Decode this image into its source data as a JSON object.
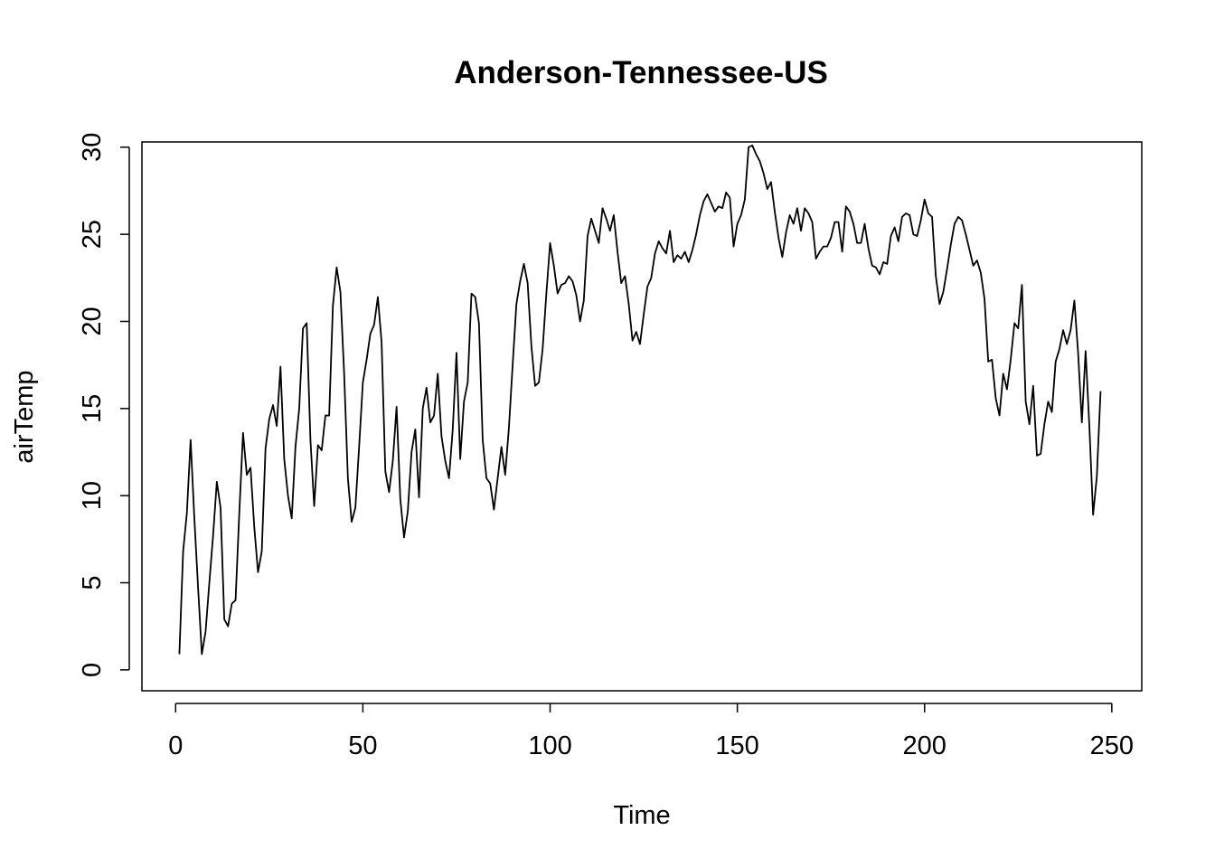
{
  "chart_data": {
    "type": "line",
    "title": "Anderson-Tennessee-US",
    "xlabel": "Time",
    "ylabel": "airTemp",
    "xlim": [
      -9,
      258
    ],
    "ylim": [
      -1.2,
      30.3
    ],
    "x_ticks": [
      0,
      50,
      100,
      150,
      200,
      250
    ],
    "y_ticks": [
      0,
      5,
      10,
      15,
      20,
      25,
      30
    ],
    "grid": false,
    "legend": "none",
    "x_start": 1,
    "series": [
      {
        "color": "#000000",
        "values": [
          0.9,
          6.8,
          9.0,
          13.2,
          8.7,
          4.7,
          0.9,
          2.2,
          5.0,
          7.7,
          10.8,
          9.3,
          2.9,
          2.5,
          3.8,
          4.0,
          9.0,
          13.6,
          11.2,
          11.6,
          8.2,
          5.6,
          6.8,
          12.7,
          14.4,
          15.2,
          14.0,
          17.4,
          12.1,
          10.0,
          8.7,
          12.8,
          15.0,
          19.6,
          19.9,
          13.2,
          9.4,
          12.9,
          12.6,
          14.6,
          14.6,
          20.9,
          23.1,
          21.7,
          17.0,
          11.0,
          8.5,
          9.3,
          12.8,
          16.5,
          17.8,
          19.3,
          19.8,
          21.4,
          18.8,
          11.4,
          10.2,
          12.0,
          15.1,
          9.8,
          7.6,
          9.1,
          12.5,
          13.8,
          9.9,
          15.0,
          16.2,
          14.2,
          14.6,
          17.0,
          13.4,
          12.0,
          11.0,
          13.8,
          18.2,
          12.1,
          15.4,
          16.5,
          21.6,
          21.4,
          19.9,
          13.2,
          11.0,
          10.7,
          9.2,
          11.0,
          12.8,
          11.2,
          13.9,
          17.5,
          21.0,
          22.3,
          23.3,
          22.2,
          18.6,
          16.3,
          16.5,
          18.4,
          21.6,
          24.5,
          23.2,
          21.6,
          22.1,
          22.2,
          22.6,
          22.3,
          21.5,
          20.0,
          21.2,
          24.9,
          25.9,
          25.2,
          24.5,
          26.5,
          25.9,
          25.2,
          26.1,
          24.0,
          22.2,
          22.6,
          21.0,
          18.9,
          19.4,
          18.7,
          20.4,
          22.0,
          22.5,
          23.9,
          24.6,
          24.2,
          23.9,
          25.2,
          23.4,
          23.8,
          23.6,
          24.0,
          23.4,
          24.1,
          25.0,
          26.1,
          26.9,
          27.3,
          26.8,
          26.3,
          26.6,
          26.5,
          27.4,
          27.1,
          24.3,
          25.6,
          26.1,
          27.0,
          30.0,
          30.1,
          29.6,
          29.2,
          28.5,
          27.6,
          28.0,
          26.3,
          24.8,
          23.7,
          25.1,
          26.1,
          25.6,
          26.5,
          25.2,
          26.5,
          26.2,
          25.7,
          23.6,
          24.0,
          24.3,
          24.3,
          24.8,
          25.7,
          25.7,
          24.0,
          26.6,
          26.3,
          25.6,
          24.5,
          24.5,
          25.6,
          24.2,
          23.2,
          23.1,
          22.7,
          23.4,
          23.3,
          24.9,
          25.4,
          24.6,
          26.0,
          26.2,
          26.1,
          25.0,
          24.9,
          25.8,
          27.0,
          26.2,
          26.0,
          22.6,
          21.0,
          21.7,
          23.0,
          24.4,
          25.6,
          26.0,
          25.8,
          25.0,
          24.1,
          23.2,
          23.5,
          22.8,
          21.3,
          17.7,
          17.8,
          15.6,
          14.6,
          17.0,
          16.1,
          17.8,
          19.9,
          19.6,
          22.1,
          15.4,
          14.1,
          16.3,
          12.3,
          12.4,
          14.1,
          15.4,
          14.8,
          17.7,
          18.4,
          19.5,
          18.7,
          19.5,
          21.2,
          18.2,
          14.2,
          18.3,
          14.0,
          8.9,
          11.1,
          16.0
        ]
      }
    ]
  }
}
